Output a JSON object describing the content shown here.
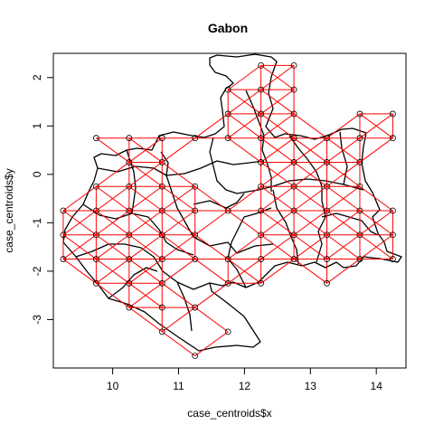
{
  "chart_data": {
    "type": "scatter",
    "title": "Gabon",
    "xlabel": "case_centroids$x",
    "ylabel": "case_centroids$y",
    "xlim": [
      9.1,
      14.45
    ],
    "ylim": [
      -4.0,
      2.5
    ],
    "xticks": [
      10,
      11,
      12,
      13,
      14
    ],
    "yticks": [
      -3,
      -2,
      -1,
      0,
      1,
      2
    ],
    "grid": false,
    "series": [
      {
        "name": "case centroids",
        "points": [
          [
            12.25,
            2.25
          ],
          [
            12.75,
            2.25
          ],
          [
            11.75,
            1.75
          ],
          [
            12.25,
            1.75
          ],
          [
            12.75,
            1.75
          ],
          [
            11.75,
            1.25
          ],
          [
            12.25,
            1.25
          ],
          [
            12.75,
            1.25
          ],
          [
            13.75,
            1.25
          ],
          [
            14.25,
            1.25
          ],
          [
            9.75,
            0.75
          ],
          [
            10.25,
            0.75
          ],
          [
            10.75,
            0.75
          ],
          [
            11.25,
            0.75
          ],
          [
            11.75,
            0.75
          ],
          [
            12.25,
            0.75
          ],
          [
            12.75,
            0.75
          ],
          [
            13.25,
            0.75
          ],
          [
            13.75,
            0.75
          ],
          [
            14.25,
            0.75
          ],
          [
            10.25,
            0.25
          ],
          [
            10.75,
            0.25
          ],
          [
            12.25,
            0.25
          ],
          [
            12.75,
            0.25
          ],
          [
            13.25,
            0.25
          ],
          [
            13.75,
            0.25
          ],
          [
            9.75,
            -0.25
          ],
          [
            10.25,
            -0.25
          ],
          [
            10.75,
            -0.25
          ],
          [
            11.25,
            -0.25
          ],
          [
            12.25,
            -0.25
          ],
          [
            12.75,
            -0.25
          ],
          [
            13.25,
            -0.25
          ],
          [
            13.75,
            -0.25
          ],
          [
            9.25,
            -0.75
          ],
          [
            9.75,
            -0.75
          ],
          [
            10.25,
            -0.75
          ],
          [
            10.75,
            -0.75
          ],
          [
            11.25,
            -0.75
          ],
          [
            11.75,
            -0.75
          ],
          [
            12.25,
            -0.75
          ],
          [
            12.75,
            -0.75
          ],
          [
            13.25,
            -0.75
          ],
          [
            13.75,
            -0.75
          ],
          [
            14.25,
            -0.75
          ],
          [
            9.25,
            -1.25
          ],
          [
            9.75,
            -1.25
          ],
          [
            10.25,
            -1.25
          ],
          [
            10.75,
            -1.25
          ],
          [
            11.25,
            -1.25
          ],
          [
            12.25,
            -1.25
          ],
          [
            12.75,
            -1.25
          ],
          [
            13.25,
            -1.25
          ],
          [
            13.75,
            -1.25
          ],
          [
            14.25,
            -1.25
          ],
          [
            9.25,
            -1.75
          ],
          [
            9.75,
            -1.75
          ],
          [
            10.25,
            -1.75
          ],
          [
            10.75,
            -1.75
          ],
          [
            11.25,
            -1.75
          ],
          [
            11.75,
            -1.75
          ],
          [
            12.25,
            -1.75
          ],
          [
            12.75,
            -1.75
          ],
          [
            13.25,
            -1.75
          ],
          [
            13.75,
            -1.75
          ],
          [
            14.25,
            -1.75
          ],
          [
            10.25,
            -2.25
          ],
          [
            10.75,
            -2.25
          ],
          [
            11.75,
            -2.25
          ],
          [
            12.25,
            -2.25
          ],
          [
            13.25,
            -2.25
          ],
          [
            9.75,
            -2.25
          ],
          [
            10.25,
            -2.75
          ],
          [
            10.75,
            -2.75
          ],
          [
            11.25,
            -2.75
          ],
          [
            10.75,
            -3.25
          ],
          [
            11.75,
            -3.25
          ],
          [
            11.25,
            -3.75
          ]
        ]
      }
    ],
    "adjacency_note": "red segments connect neighbouring centroid cells (rook + queen moves)"
  }
}
